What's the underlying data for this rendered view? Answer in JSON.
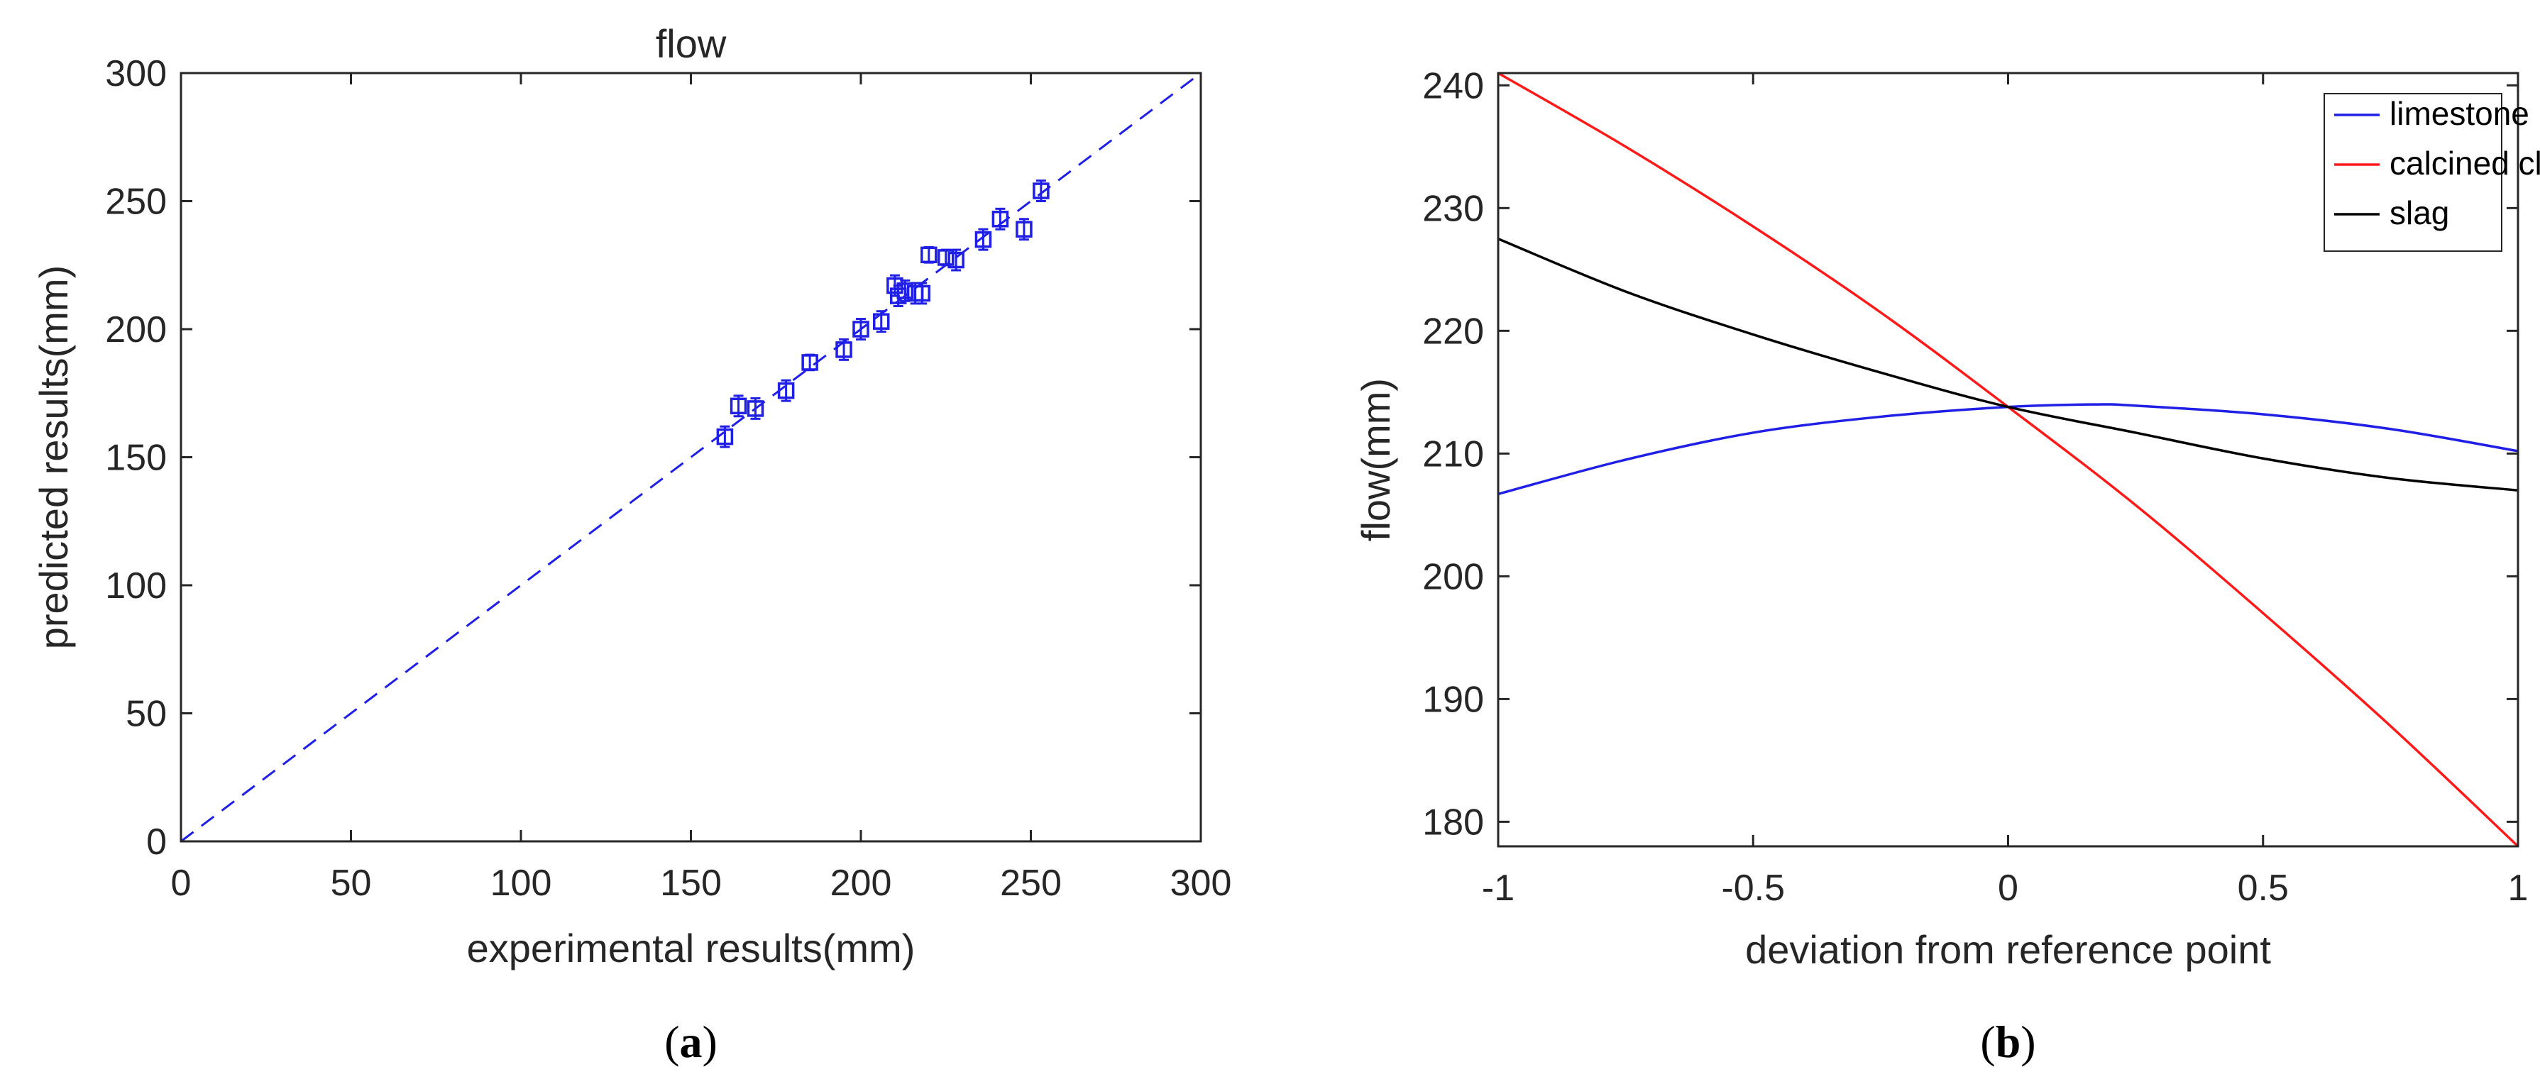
{
  "chart_data": [
    {
      "panel_label": "a",
      "type": "scatter",
      "title": "flow",
      "xlabel": "experimental results(mm)",
      "ylabel": "predicted results(mm)",
      "xlim": [
        0,
        300
      ],
      "ylim": [
        0,
        300
      ],
      "xticks": [
        0,
        50,
        100,
        150,
        200,
        250,
        300
      ],
      "yticks": [
        0,
        50,
        100,
        150,
        200,
        250,
        300
      ],
      "reference_line": {
        "style": "dashed",
        "from": [
          0,
          0
        ],
        "to": [
          300,
          300
        ],
        "color": "#1f1fe6"
      },
      "marker": "square",
      "marker_color": "#1f1fe6",
      "points": [
        {
          "x": 160,
          "y": 158,
          "err": 4
        },
        {
          "x": 164,
          "y": 170,
          "err": 4
        },
        {
          "x": 169,
          "y": 169,
          "err": 4
        },
        {
          "x": 178,
          "y": 176,
          "err": 4
        },
        {
          "x": 185,
          "y": 187,
          "err": 3
        },
        {
          "x": 195,
          "y": 192,
          "err": 4
        },
        {
          "x": 200,
          "y": 200,
          "err": 4
        },
        {
          "x": 206,
          "y": 203,
          "err": 4
        },
        {
          "x": 210,
          "y": 217,
          "err": 4
        },
        {
          "x": 211,
          "y": 213,
          "err": 4
        },
        {
          "x": 213,
          "y": 215,
          "err": 4
        },
        {
          "x": 216,
          "y": 214,
          "err": 4
        },
        {
          "x": 218,
          "y": 214,
          "err": 4
        },
        {
          "x": 220,
          "y": 229,
          "err": 3
        },
        {
          "x": 225,
          "y": 228,
          "err": 3
        },
        {
          "x": 228,
          "y": 227,
          "err": 4
        },
        {
          "x": 236,
          "y": 235,
          "err": 4
        },
        {
          "x": 241,
          "y": 243,
          "err": 4
        },
        {
          "x": 248,
          "y": 239,
          "err": 4
        },
        {
          "x": 253,
          "y": 254,
          "err": 4
        }
      ]
    },
    {
      "panel_label": "b",
      "type": "line",
      "title": "",
      "xlabel": "deviation from reference point",
      "ylabel": "flow(mm)",
      "xlim": [
        -1,
        1
      ],
      "ylim": [
        178,
        241
      ],
      "xticks": [
        -1,
        -0.5,
        0,
        0.5,
        1
      ],
      "xtick_labels": [
        "-1",
        "-0.5",
        "0",
        "0.5",
        "1"
      ],
      "yticks": [
        180,
        190,
        200,
        210,
        220,
        230,
        240
      ],
      "legend_position": "top-right",
      "series": [
        {
          "name": "limestone",
          "color": "#1f1fe6",
          "x": [
            -1,
            -0.75,
            -0.5,
            -0.25,
            0,
            0.17,
            0.25,
            0.5,
            0.75,
            1
          ],
          "y": [
            206.7,
            209.5,
            211.7,
            213.0,
            213.8,
            214.0,
            213.9,
            213.2,
            212.0,
            210.2
          ]
        },
        {
          "name": "calcined clay",
          "color": "#ff1a1a",
          "x": [
            -1,
            -0.75,
            -0.5,
            -0.25,
            0,
            0.25,
            0.5,
            0.75,
            1
          ],
          "y": [
            241.0,
            235.0,
            228.5,
            221.5,
            213.8,
            205.8,
            197.0,
            187.8,
            178.0
          ]
        },
        {
          "name": "slag",
          "color": "#000000",
          "x": [
            -1,
            -0.75,
            -0.5,
            -0.25,
            0,
            0.25,
            0.5,
            0.75,
            1
          ],
          "y": [
            227.5,
            223.2,
            219.7,
            216.6,
            213.8,
            211.7,
            209.6,
            208.0,
            207.0
          ]
        }
      ]
    }
  ]
}
